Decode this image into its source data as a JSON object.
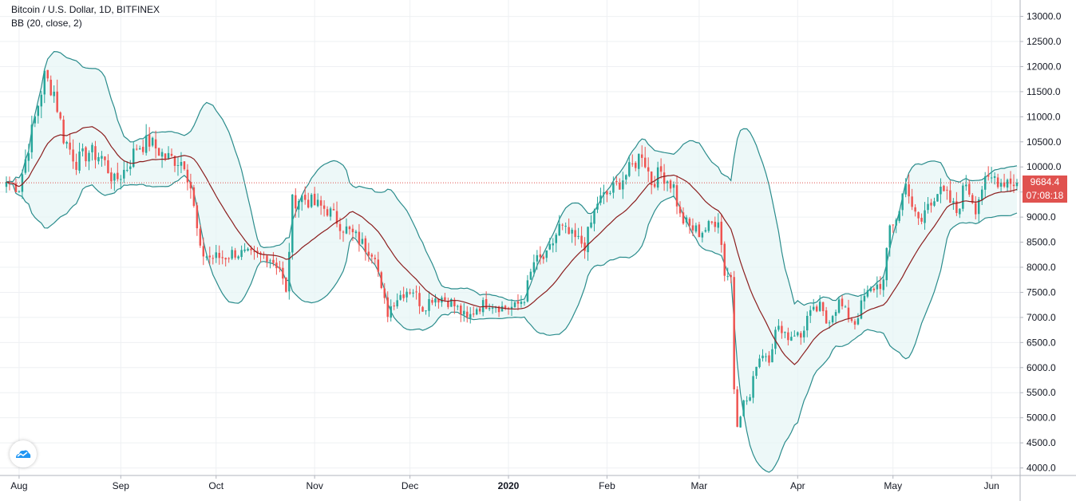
{
  "legend": {
    "symbol": "Bitcoin / U.S. Dollar, 1D, BITFINEX",
    "indicator": "BB (20, close, 2)"
  },
  "last_price": "9684.4",
  "countdown": "07:08:18",
  "colors": {
    "up": "#26a69a",
    "down": "#ef5350",
    "band": "#2a8c8c",
    "basis": "#8b1e1e",
    "band_fill": "#e6f5f5",
    "price_line": "#e0524f"
  },
  "icons": {
    "logo": "tradingview-logo-icon"
  },
  "chart_data": {
    "type": "candlestick",
    "title": "Bitcoin / U.S. Dollar, 1D, BITFINEX",
    "indicator": "BB (20, close, 2)",
    "ylim": [
      3850,
      13200
    ],
    "y_ticks": [
      "4000.0",
      "4500.0",
      "5000.0",
      "5500.0",
      "6000.0",
      "6500.0",
      "7000.0",
      "7500.0",
      "8000.0",
      "8500.0",
      "9000.0",
      "9500.0",
      "10000.0",
      "10500.0",
      "11000.0",
      "11500.0",
      "12000.0",
      "12500.0",
      "13000.0"
    ],
    "x_ticks": [
      {
        "label": "Aug",
        "day": 4,
        "bold": false
      },
      {
        "label": "Sep",
        "day": 36,
        "bold": false
      },
      {
        "label": "Oct",
        "day": 66,
        "bold": false
      },
      {
        "label": "Nov",
        "day": 97,
        "bold": false
      },
      {
        "label": "Dec",
        "day": 127,
        "bold": false
      },
      {
        "label": "2020",
        "day": 158,
        "bold": true
      },
      {
        "label": "Feb",
        "day": 189,
        "bold": false
      },
      {
        "label": "Mar",
        "day": 218,
        "bold": false
      },
      {
        "label": "Apr",
        "day": 249,
        "bold": false
      },
      {
        "label": "May",
        "day": 279,
        "bold": false
      },
      {
        "label": "Jun",
        "day": 310,
        "bold": false
      }
    ],
    "days": 319,
    "last_value": 9684.4,
    "keypoints": [
      [
        0,
        9700
      ],
      [
        4,
        9600
      ],
      [
        8,
        10700
      ],
      [
        12,
        11800
      ],
      [
        15,
        11500
      ],
      [
        18,
        10600
      ],
      [
        22,
        10100
      ],
      [
        26,
        10300
      ],
      [
        30,
        10200
      ],
      [
        34,
        9700
      ],
      [
        38,
        10000
      ],
      [
        41,
        10400
      ],
      [
        45,
        10500
      ],
      [
        50,
        10200
      ],
      [
        56,
        10100
      ],
      [
        58,
        9600
      ],
      [
        61,
        8300
      ],
      [
        64,
        8200
      ],
      [
        68,
        8200
      ],
      [
        72,
        8300
      ],
      [
        78,
        8200
      ],
      [
        82,
        8250
      ],
      [
        86,
        8000
      ],
      [
        88,
        7450
      ],
      [
        90,
        9300
      ],
      [
        93,
        9400
      ],
      [
        97,
        9250
      ],
      [
        101,
        9150
      ],
      [
        106,
        8800
      ],
      [
        110,
        8600
      ],
      [
        113,
        8400
      ],
      [
        116,
        8300
      ],
      [
        118,
        7500
      ],
      [
        120,
        7100
      ],
      [
        122,
        7350
      ],
      [
        126,
        7550
      ],
      [
        128,
        7550
      ],
      [
        131,
        7200
      ],
      [
        134,
        7400
      ],
      [
        137,
        7400
      ],
      [
        140,
        7300
      ],
      [
        143,
        7100
      ],
      [
        145,
        6950
      ],
      [
        148,
        7200
      ],
      [
        152,
        7300
      ],
      [
        156,
        7200
      ],
      [
        160,
        7200
      ],
      [
        163,
        7400
      ],
      [
        166,
        8100
      ],
      [
        170,
        8200
      ],
      [
        174,
        8800
      ],
      [
        178,
        8600
      ],
      [
        182,
        8450
      ],
      [
        186,
        9300
      ],
      [
        190,
        9500
      ],
      [
        193,
        9700
      ],
      [
        197,
        10000
      ],
      [
        200,
        10300
      ],
      [
        203,
        9700
      ],
      [
        206,
        9900
      ],
      [
        210,
        9600
      ],
      [
        212,
        9000
      ],
      [
        215,
        8800
      ],
      [
        218,
        8700
      ],
      [
        221,
        8800
      ],
      [
        224,
        9000
      ],
      [
        226,
        7900
      ],
      [
        228,
        7800
      ],
      [
        229,
        5600
      ],
      [
        230,
        4900
      ],
      [
        232,
        5300
      ],
      [
        234,
        5400
      ],
      [
        236,
        6100
      ],
      [
        238,
        6300
      ],
      [
        240,
        6200
      ],
      [
        242,
        6700
      ],
      [
        244,
        6800
      ],
      [
        246,
        6600
      ],
      [
        248,
        6700
      ],
      [
        250,
        6600
      ],
      [
        252,
        7000
      ],
      [
        254,
        7100
      ],
      [
        256,
        7200
      ],
      [
        258,
        6900
      ],
      [
        260,
        7100
      ],
      [
        262,
        7300
      ],
      [
        264,
        7100
      ],
      [
        267,
        6900
      ],
      [
        270,
        7400
      ],
      [
        273,
        7600
      ],
      [
        276,
        7700
      ],
      [
        278,
        8800
      ],
      [
        281,
        9100
      ],
      [
        283,
        9800
      ],
      [
        285,
        9100
      ],
      [
        288,
        8900
      ],
      [
        290,
        9300
      ],
      [
        293,
        9500
      ],
      [
        296,
        9400
      ],
      [
        299,
        9100
      ],
      [
        302,
        9700
      ],
      [
        305,
        9200
      ],
      [
        307,
        9600
      ],
      [
        309,
        9700
      ],
      [
        311,
        9800
      ],
      [
        313,
        9700
      ],
      [
        315,
        9750
      ],
      [
        318,
        9684
      ]
    ]
  }
}
